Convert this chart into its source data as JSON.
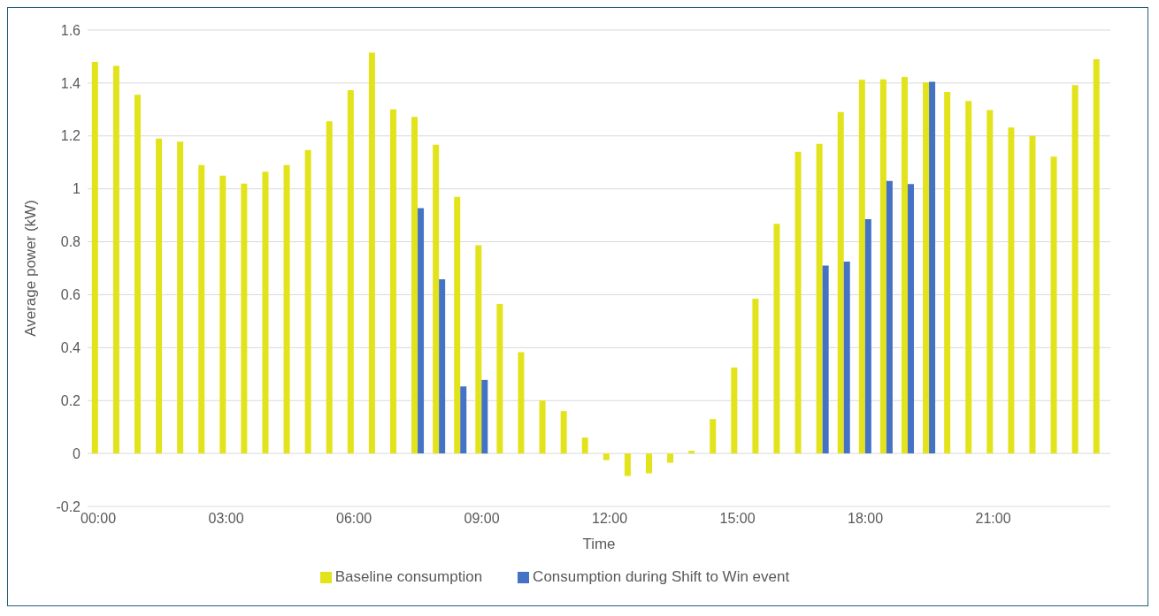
{
  "chart_data": {
    "type": "bar",
    "xlabel": "Time",
    "ylabel": "Average power (kW)",
    "categories": [
      "00:00",
      null,
      null,
      null,
      null,
      null,
      "03:00",
      null,
      null,
      null,
      null,
      null,
      "06:00",
      null,
      null,
      null,
      null,
      null,
      "09:00",
      null,
      null,
      null,
      null,
      null,
      "12:00",
      null,
      null,
      null,
      null,
      null,
      "15:00",
      null,
      null,
      null,
      null,
      null,
      "18:00",
      null,
      null,
      null,
      null,
      null,
      "21:00",
      null,
      null,
      null,
      null,
      null
    ],
    "series": [
      {
        "name": "Baseline consumption",
        "color": "#e3e31c",
        "values": [
          1.48,
          1.465,
          1.355,
          1.19,
          1.178,
          1.09,
          1.05,
          1.02,
          1.065,
          1.09,
          1.147,
          1.255,
          1.373,
          1.515,
          1.3,
          1.272,
          1.167,
          0.97,
          0.787,
          0.565,
          0.383,
          0.2,
          0.16,
          0.06,
          -0.025,
          -0.085,
          -0.075,
          -0.035,
          0.01,
          0.13,
          0.325,
          0.585,
          0.868,
          1.14,
          1.17,
          1.29,
          1.412,
          1.414,
          1.423,
          1.402,
          1.366,
          1.332,
          1.298,
          1.232,
          1.2,
          1.122,
          1.392,
          1.49
        ]
      },
      {
        "name": "Consumption during Shift to Win event",
        "color": "#4472c4",
        "values": [
          null,
          null,
          null,
          null,
          null,
          null,
          null,
          null,
          null,
          null,
          null,
          null,
          null,
          null,
          null,
          0.927,
          0.658,
          0.253,
          0.278,
          null,
          null,
          null,
          null,
          null,
          null,
          null,
          null,
          null,
          null,
          null,
          null,
          null,
          null,
          null,
          0.71,
          0.725,
          0.885,
          1.03,
          1.018,
          1.405,
          null,
          null,
          null,
          null,
          null,
          null,
          null,
          null
        ]
      }
    ],
    "ylim": [
      -0.2,
      1.6
    ],
    "yticks": [
      -0.2,
      0,
      0.2,
      0.4,
      0.6,
      0.8,
      1,
      1.2,
      1.4,
      1.6
    ],
    "grid": "y",
    "legend": "bottom"
  }
}
